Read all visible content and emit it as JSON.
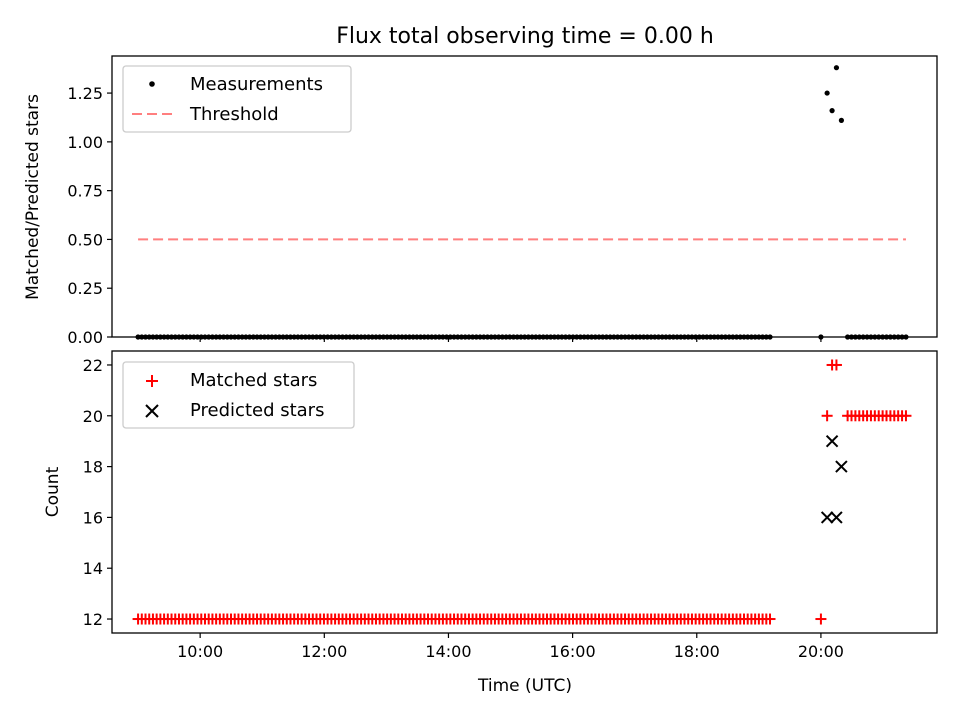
{
  "chart_data": [
    {
      "type": "scatter",
      "title": "Flux total observing time = 0.00 h",
      "xlabel": "",
      "ylabel": "Matched/Predicted stars",
      "xlim": [
        8.58,
        21.87
      ],
      "ylim": [
        0,
        1.44
      ],
      "yticks": [
        0.0,
        0.25,
        0.5,
        0.75,
        1.0,
        1.25
      ],
      "ytick_labels": [
        "0.00",
        "0.25",
        "0.50",
        "0.75",
        "1.00",
        "1.25"
      ],
      "xticks": [
        10,
        12,
        14,
        16,
        18,
        20
      ],
      "legend_position": "top-left",
      "series": [
        {
          "name": "Measurements",
          "marker": "dot",
          "color": "#000000",
          "points_note_excluded": false,
          "zero_runs": [
            {
              "from": 9.0,
              "to": 19.18,
              "count": 171,
              "y": 0
            },
            {
              "from": 20.43,
              "to": 21.37,
              "count": 16,
              "y": 0
            }
          ],
          "points": [
            [
              20.0,
              0
            ],
            [
              20.1,
              1.25
            ],
            [
              20.18,
              1.16
            ],
            [
              20.25,
              1.38
            ],
            [
              20.33,
              1.11
            ]
          ]
        },
        {
          "name": "Threshold",
          "style": "dashed",
          "color": "#ff7f7f",
          "x": [
            9.0,
            21.37
          ],
          "y": [
            0.5,
            0.5
          ]
        }
      ]
    },
    {
      "type": "scatter",
      "title": "",
      "xlabel": "Time (UTC)",
      "ylabel": "Count",
      "xlim": [
        8.58,
        21.87
      ],
      "ylim": [
        11.45,
        22.55
      ],
      "yticks": [
        12,
        14,
        16,
        18,
        20,
        22
      ],
      "ytick_labels": [
        "12",
        "14",
        "16",
        "18",
        "20",
        "22"
      ],
      "xticks": [
        10,
        12,
        14,
        16,
        18,
        20
      ],
      "xtick_labels": [
        "10:00",
        "12:00",
        "14:00",
        "16:00",
        "18:00",
        "20:00"
      ],
      "legend_position": "top-left",
      "series": [
        {
          "name": "Matched stars",
          "marker": "plus",
          "color": "#ff0000",
          "runs": [
            {
              "from": 9.0,
              "to": 19.18,
              "count": 171,
              "y": 12
            },
            {
              "from": 20.43,
              "to": 21.37,
              "count": 16,
              "y": 20
            }
          ],
          "points": [
            [
              20.0,
              12
            ],
            [
              20.1,
              20
            ],
            [
              20.18,
              22
            ],
            [
              20.25,
              22
            ]
          ]
        },
        {
          "name": "Predicted stars",
          "marker": "x",
          "color": "#000000",
          "points": [
            [
              20.1,
              16
            ],
            [
              20.18,
              19
            ],
            [
              20.25,
              16
            ],
            [
              20.33,
              18
            ]
          ]
        }
      ]
    }
  ]
}
